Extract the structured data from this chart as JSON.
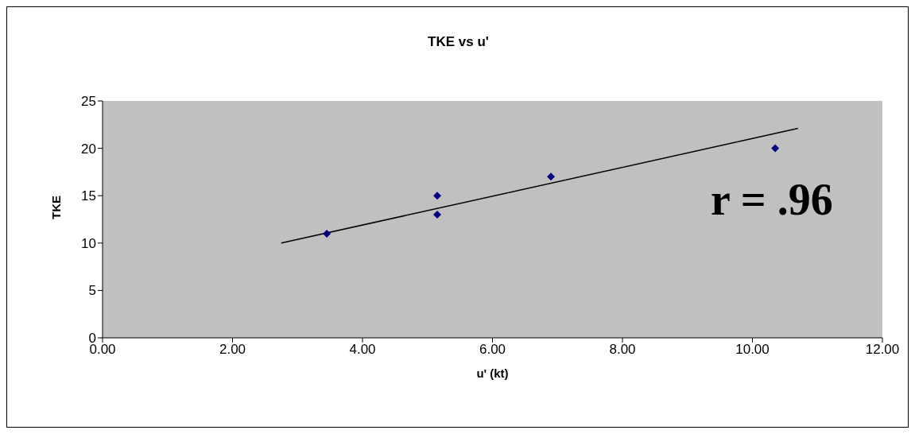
{
  "chart_data": {
    "type": "scatter",
    "title": "TKE vs u'",
    "xlabel": "u' (kt)",
    "ylabel": "TKE",
    "series": [
      {
        "color": "#000080",
        "x": [
          3.45,
          5.15,
          5.15,
          6.9,
          10.35
        ],
        "values": [
          11,
          15,
          13,
          17,
          20
        ]
      },
      {
        "type": "line",
        "marker": "none",
        "color": "#000000",
        "x": [
          2.75,
          10.7
        ],
        "values": [
          10,
          22.1
        ]
      }
    ],
    "marker": "diamond",
    "annotations": [
      "r = .96"
    ],
    "xlim": [
      0,
      12
    ],
    "xticks": [
      {
        "value": 0,
        "label": "0.00"
      },
      {
        "value": 2,
        "label": "2.00"
      },
      {
        "value": 4,
        "label": "4.00"
      },
      {
        "value": 6,
        "label": "6.00"
      },
      {
        "value": 8,
        "label": "8.00"
      },
      {
        "value": 10,
        "label": "10.00"
      },
      {
        "value": 12,
        "label": "12.00"
      }
    ],
    "ylim": [
      0,
      25
    ],
    "yticks": [
      0,
      5,
      10,
      15,
      20,
      25
    ],
    "grid": false
  }
}
